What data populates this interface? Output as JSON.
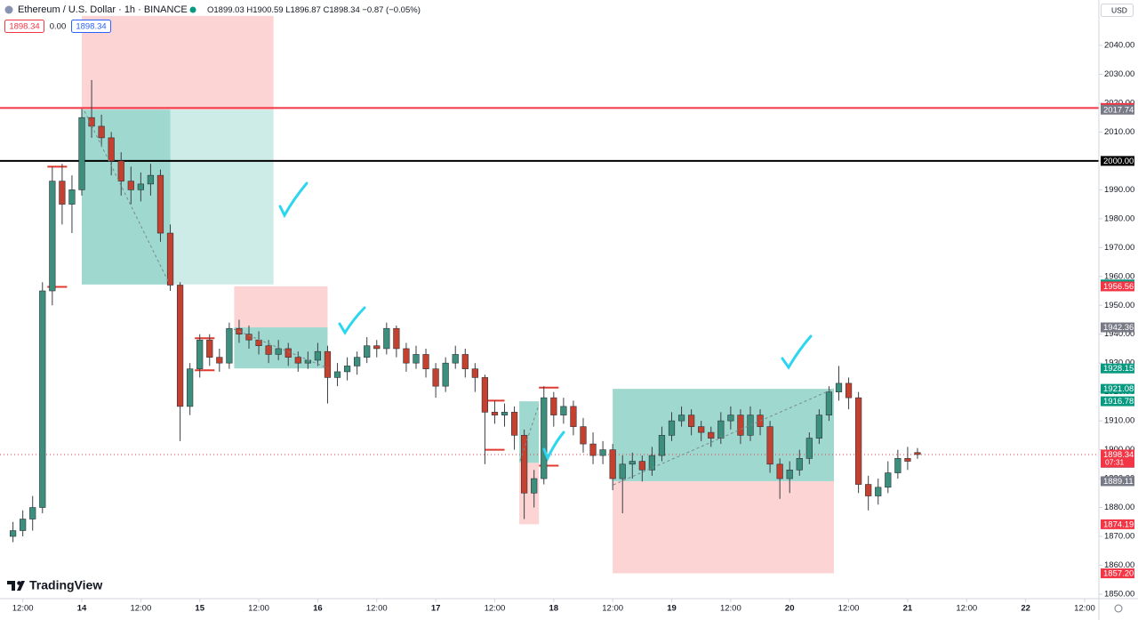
{
  "header": {
    "symbol": "Ethereum / U.S. Dollar · 1h · BINANCE",
    "ohlc_keys": [
      "O",
      "H",
      "L",
      "C"
    ],
    "change": "−0.87 (−0.05%)",
    "badges": [
      "1898.34",
      "0.00",
      "1898.34"
    ],
    "currency": "USD",
    "brand": "TradingView"
  },
  "chart_data": {
    "type": "candlestick",
    "up_color": "#3d8f7d",
    "down_color": "#c4402f",
    "countdown": "07:31",
    "xlim": [
      -16.64,
      206.9
    ],
    "ylim": [
      1848.44,
      2055.71
    ],
    "xticks": [
      {
        "value": -12,
        "label": "12:00"
      },
      {
        "value": 0,
        "label": "14"
      },
      {
        "value": 12,
        "label": "12:00"
      },
      {
        "value": 24,
        "label": "15"
      },
      {
        "value": 36,
        "label": "12:00"
      },
      {
        "value": 48,
        "label": "16"
      },
      {
        "value": 60,
        "label": "12:00"
      },
      {
        "value": 72,
        "label": "17"
      },
      {
        "value": 84,
        "label": "12:00"
      },
      {
        "value": 96,
        "label": "18"
      },
      {
        "value": 108,
        "label": "12:00"
      },
      {
        "value": 120,
        "label": "19"
      },
      {
        "value": 132,
        "label": "12:00"
      },
      {
        "value": 144,
        "label": "20"
      },
      {
        "value": 156,
        "label": "12:00"
      },
      {
        "value": 168,
        "label": "21"
      },
      {
        "value": 180,
        "label": "12:00"
      },
      {
        "value": 192,
        "label": "22"
      },
      {
        "value": 204,
        "label": "12:00"
      }
    ],
    "yticks": [
      {
        "value": 1850,
        "label": "1850.00"
      },
      {
        "value": 1860,
        "label": "1860.00"
      },
      {
        "value": 1870,
        "label": "1870.00"
      },
      {
        "value": 1880,
        "label": "1880.00"
      },
      {
        "value": 1890,
        "label": "1890.00"
      },
      {
        "value": 1900,
        "label": "1900.00"
      },
      {
        "value": 1910,
        "label": "1910.00"
      },
      {
        "value": 1920,
        "label": "1920.00"
      },
      {
        "value": 1930,
        "label": "1930.00"
      },
      {
        "value": 1940,
        "label": "1940.00"
      },
      {
        "value": 1950,
        "label": "1950.00"
      },
      {
        "value": 1960,
        "label": "1960.00"
      },
      {
        "value": 1970,
        "label": "1970.00"
      },
      {
        "value": 1980,
        "label": "1980.00"
      },
      {
        "value": 1990,
        "label": "1990.00"
      },
      {
        "value": 2000,
        "label": "2000.00"
      },
      {
        "value": 2010,
        "label": "2010.00"
      },
      {
        "value": 2020,
        "label": "2020.00"
      },
      {
        "value": 2030,
        "label": "2030.00"
      },
      {
        "value": 2040,
        "label": "2040.00"
      }
    ],
    "x": [
      -14,
      -12,
      -10,
      -8,
      -6,
      -4,
      -2,
      0,
      2,
      4,
      6,
      8,
      10,
      12,
      14,
      16,
      18,
      20,
      22,
      24,
      26,
      28,
      30,
      32,
      34,
      36,
      38,
      40,
      42,
      44,
      46,
      48,
      50,
      52,
      54,
      56,
      58,
      60,
      62,
      64,
      66,
      68,
      70,
      72,
      74,
      76,
      78,
      80,
      82,
      84,
      86,
      88,
      90,
      92,
      94,
      96,
      98,
      100,
      102,
      104,
      106,
      108,
      110,
      112,
      114,
      116,
      118,
      120,
      122,
      124,
      126,
      128,
      130,
      132,
      134,
      136,
      138,
      140,
      142,
      144,
      146,
      148,
      150,
      152,
      154,
      156,
      158,
      160,
      162,
      164,
      166,
      168,
      170
    ],
    "ohlc": [
      [
        1870,
        1875,
        1868,
        1872
      ],
      [
        1872,
        1879,
        1870,
        1876
      ],
      [
        1876,
        1884,
        1872,
        1880
      ],
      [
        1880,
        1958,
        1878,
        1955
      ],
      [
        1955,
        1998,
        1950,
        1993
      ],
      [
        1993,
        1999,
        1978,
        1985
      ],
      [
        1985,
        1995,
        1975,
        1990
      ],
      [
        1990,
        2018,
        1988,
        2015
      ],
      [
        2015,
        2028,
        2008,
        2012
      ],
      [
        2012,
        2016,
        2005,
        2008
      ],
      [
        2008,
        2010,
        1995,
        2000
      ],
      [
        2000,
        2003,
        1988,
        1993
      ],
      [
        1993,
        1998,
        1985,
        1990
      ],
      [
        1990,
        1996,
        1986,
        1992
      ],
      [
        1992,
        1999,
        1988,
        1995
      ],
      [
        1995,
        1997,
        1972,
        1975
      ],
      [
        1975,
        1978,
        1955,
        1957
      ],
      [
        1957,
        1958,
        1903,
        1915
      ],
      [
        1915,
        1930,
        1912,
        1928
      ],
      [
        1928,
        1940,
        1925,
        1938
      ],
      [
        1938,
        1940,
        1929,
        1932
      ],
      [
        1932,
        1935,
        1927,
        1930
      ],
      [
        1930,
        1944,
        1928,
        1942
      ],
      [
        1942,
        1945,
        1937,
        1940
      ],
      [
        1940,
        1943,
        1935,
        1938
      ],
      [
        1938,
        1941,
        1933,
        1936
      ],
      [
        1936,
        1938,
        1930,
        1933
      ],
      [
        1933,
        1938,
        1931,
        1935
      ],
      [
        1935,
        1937,
        1929,
        1932
      ],
      [
        1932,
        1934,
        1927,
        1930
      ],
      [
        1930,
        1934,
        1928,
        1931
      ],
      [
        1931,
        1937,
        1929,
        1934
      ],
      [
        1934,
        1936,
        1916,
        1925
      ],
      [
        1925,
        1930,
        1922,
        1927
      ],
      [
        1927,
        1932,
        1924,
        1929
      ],
      [
        1929,
        1934,
        1926,
        1932
      ],
      [
        1932,
        1939,
        1930,
        1936
      ],
      [
        1936,
        1938,
        1932,
        1935
      ],
      [
        1935,
        1944,
        1933,
        1942
      ],
      [
        1942,
        1943,
        1932,
        1935
      ],
      [
        1935,
        1937,
        1927,
        1930
      ],
      [
        1930,
        1936,
        1928,
        1933
      ],
      [
        1933,
        1935,
        1925,
        1928
      ],
      [
        1928,
        1930,
        1918,
        1922
      ],
      [
        1922,
        1932,
        1920,
        1930
      ],
      [
        1930,
        1936,
        1928,
        1933
      ],
      [
        1933,
        1935,
        1925,
        1928
      ],
      [
        1928,
        1930,
        1920,
        1925
      ],
      [
        1925,
        1926,
        1895,
        1913
      ],
      [
        1913,
        1917,
        1909,
        1912
      ],
      [
        1912,
        1916,
        1908,
        1913
      ],
      [
        1913,
        1915,
        1900,
        1905
      ],
      [
        1905,
        1907,
        1876,
        1885
      ],
      [
        1885,
        1893,
        1880,
        1890
      ],
      [
        1890,
        1922,
        1888,
        1918
      ],
      [
        1918,
        1920,
        1908,
        1912
      ],
      [
        1912,
        1918,
        1909,
        1915
      ],
      [
        1915,
        1917,
        1905,
        1908
      ],
      [
        1908,
        1911,
        1899,
        1902
      ],
      [
        1902,
        1906,
        1895,
        1898
      ],
      [
        1898,
        1903,
        1895,
        1900
      ],
      [
        1900,
        1902,
        1886,
        1890
      ],
      [
        1890,
        1898,
        1878,
        1895
      ],
      [
        1895,
        1899,
        1890,
        1896
      ],
      [
        1896,
        1898,
        1889,
        1893
      ],
      [
        1893,
        1901,
        1891,
        1898
      ],
      [
        1898,
        1908,
        1896,
        1905
      ],
      [
        1905,
        1913,
        1903,
        1910
      ],
      [
        1910,
        1915,
        1908,
        1912
      ],
      [
        1912,
        1914,
        1905,
        1908
      ],
      [
        1908,
        1910,
        1903,
        1906
      ],
      [
        1906,
        1908,
        1901,
        1904
      ],
      [
        1904,
        1913,
        1902,
        1910
      ],
      [
        1910,
        1915,
        1907,
        1912
      ],
      [
        1912,
        1914,
        1902,
        1905
      ],
      [
        1905,
        1915,
        1903,
        1912
      ],
      [
        1912,
        1914,
        1905,
        1908
      ],
      [
        1908,
        1910,
        1892,
        1895
      ],
      [
        1895,
        1897,
        1883,
        1890
      ],
      [
        1890,
        1896,
        1885,
        1893
      ],
      [
        1893,
        1900,
        1891,
        1897
      ],
      [
        1897,
        1906,
        1895,
        1904
      ],
      [
        1904,
        1914,
        1902,
        1912
      ],
      [
        1912,
        1922,
        1910,
        1920
      ],
      [
        1920,
        1929,
        1917,
        1923
      ],
      [
        1923,
        1925,
        1914,
        1918
      ],
      [
        1918,
        1920,
        1885,
        1888
      ],
      [
        1888,
        1891,
        1879,
        1884
      ],
      [
        1884,
        1890,
        1881,
        1887
      ],
      [
        1887,
        1896,
        1885,
        1892
      ],
      [
        1892,
        1900,
        1890,
        1897
      ],
      [
        1897,
        1901,
        1893,
        1896
      ],
      [
        1899.03,
        1900.59,
        1896.87,
        1898.34
      ]
    ],
    "positions": [
      {
        "x": [
          0,
          39
        ],
        "entry": 2017.74,
        "stop": 2050.2,
        "target": 1957.23,
        "closed_at": 18
      },
      {
        "x": [
          31,
          50
        ],
        "entry": 1942.36,
        "stop": 1956.56,
        "target": 1928.15
      },
      {
        "x": [
          89,
          93
        ],
        "entry": 1895.46,
        "stop": 1874.19,
        "target": 1916.78
      },
      {
        "x": [
          108,
          153
        ],
        "entry": 1889.11,
        "stop": 1857.2,
        "target": 1921.08
      }
    ],
    "brackets": [
      {
        "x": [
          -7,
          -3
        ],
        "price": 1998
      },
      {
        "x": [
          -7,
          -3
        ],
        "price": 1956.4
      },
      {
        "x": [
          23,
          27
        ],
        "price": 1938.6
      },
      {
        "x": [
          23,
          27
        ],
        "price": 1927.5
      },
      {
        "x": [
          82,
          86
        ],
        "price": 1917
      },
      {
        "x": [
          82,
          86
        ],
        "price": 1900
      },
      {
        "x": [
          93,
          97
        ],
        "price": 1921.5
      },
      {
        "x": [
          93,
          97
        ],
        "price": 1894.5
      }
    ],
    "hlines": [
      {
        "price": 2018.34,
        "color": "#f23645"
      },
      {
        "price": 2000,
        "color": "#000000"
      }
    ],
    "price_markers": [
      {
        "value": 2018.34,
        "color": "#f23645"
      },
      {
        "value": 2017.74,
        "color": "#787b86"
      },
      {
        "value": 2000,
        "label": "2000.00",
        "color": "#000000"
      },
      {
        "value": 1957.23,
        "color": "#089981"
      },
      {
        "value": 1956.56,
        "color": "#f23645"
      },
      {
        "value": 1942.36,
        "color": "#787b86"
      },
      {
        "value": 1928.15,
        "color": "#089981"
      },
      {
        "value": 1921.08,
        "color": "#089981"
      },
      {
        "value": 1916.78,
        "color": "#089981"
      },
      {
        "value": 1895.46,
        "color": "#787b86"
      },
      {
        "value": 1889.11,
        "color": "#787b86"
      },
      {
        "value": 1874.19,
        "color": "#f23645"
      },
      {
        "value": 1857.2,
        "label": "1857.20",
        "color": "#f23645"
      }
    ]
  }
}
